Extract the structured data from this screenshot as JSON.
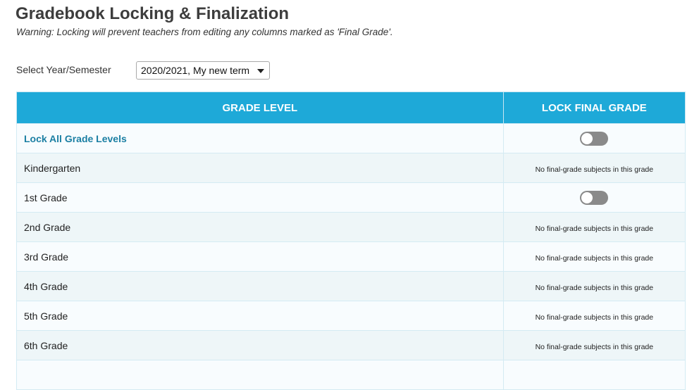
{
  "page": {
    "title": "Gradebook Locking & Finalization",
    "warning": "Warning: Locking will prevent teachers from editing any columns marked as 'Final Grade'."
  },
  "selector": {
    "label": "Select Year/Semester",
    "value": "2020/2021, My new term"
  },
  "table": {
    "headers": [
      "GRADE LEVEL",
      "LOCK FINAL GRADE"
    ],
    "lock_all_label": "Lock All Grade Levels",
    "rows": [
      {
        "grade": "Kindergarten",
        "lock": "No final-grade subjects in this grade"
      },
      {
        "grade": "1st Grade",
        "lock": ""
      },
      {
        "grade": "2nd Grade",
        "lock": "No final-grade subjects in this grade"
      },
      {
        "grade": "3rd Grade",
        "lock": "No final-grade subjects in this grade"
      },
      {
        "grade": "4th Grade",
        "lock": "No final-grade subjects in this grade"
      },
      {
        "grade": "5th Grade",
        "lock": "No final-grade subjects in this grade"
      },
      {
        "grade": "6th Grade",
        "lock": "No final-grade subjects in this grade"
      }
    ]
  },
  "colors": {
    "header_bg": "#1ea9d8",
    "link": "#1b7fa3",
    "toggle_off": "#8a8a8a"
  }
}
